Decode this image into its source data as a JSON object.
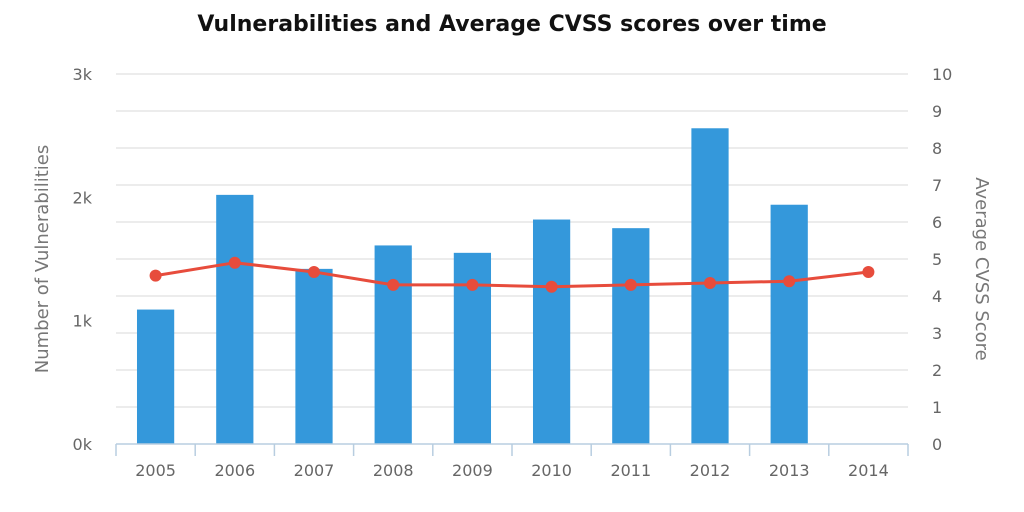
{
  "chart_data": {
    "type": "bar",
    "title": "Vulnerabilities and Average CVSS scores over time",
    "categories": [
      "2005",
      "2006",
      "2007",
      "2008",
      "2009",
      "2010",
      "2011",
      "2012",
      "2013",
      "2014"
    ],
    "series": [
      {
        "values": [
          1090,
          2020,
          1420,
          1610,
          1550,
          1820,
          1750,
          2560,
          1940,
          0
        ],
        "chart_type": "bar",
        "axis": "left",
        "color": "#3498db"
      },
      {
        "values": [
          4.55,
          4.9,
          4.65,
          4.3,
          4.3,
          4.25,
          4.3,
          4.35,
          4.4,
          4.65
        ],
        "chart_type": "line",
        "axis": "right",
        "color": "#e74c3c"
      }
    ],
    "yaxis_left": {
      "label": "Number of Vulnerabilities",
      "ylim": [
        0,
        3000
      ],
      "ticks": [
        0,
        1000,
        2000,
        3000
      ],
      "tick_labels": [
        "0k",
        "1k",
        "2k",
        "3k"
      ]
    },
    "yaxis_right": {
      "label": "Average CVSS Score",
      "ylim": [
        0,
        10
      ],
      "ticks": [
        0,
        1,
        2,
        3,
        4,
        5,
        6,
        7,
        8,
        9,
        10
      ],
      "tick_labels": [
        "0",
        "1",
        "2",
        "3",
        "4",
        "5",
        "6",
        "7",
        "8",
        "9",
        "10"
      ]
    },
    "grid": true,
    "legend": "none"
  }
}
